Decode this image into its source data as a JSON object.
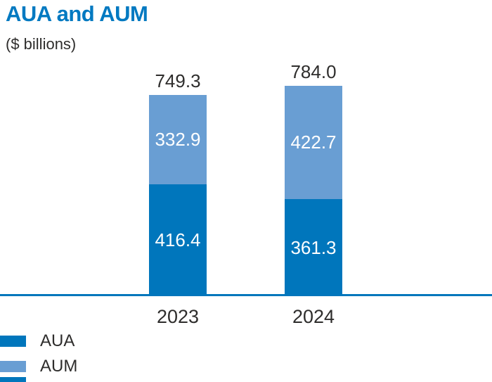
{
  "header": {
    "title": "AUA and AUM",
    "subtitle": "($ billions)"
  },
  "colors": {
    "aua": "#0076bc",
    "aum": "#699ed3",
    "axis": "#0076bc",
    "title_text": "#0079c1",
    "body_text": "#2e2d2c",
    "segment_label_text": "#ffffff"
  },
  "chart_data": {
    "type": "bar",
    "stacked": true,
    "title": "AUA and AUM",
    "units": "$ billions",
    "categories": [
      "2023",
      "2024"
    ],
    "series": [
      {
        "name": "AUM",
        "color": "#699ed3",
        "values": [
          332.9,
          422.7
        ]
      },
      {
        "name": "AUA",
        "color": "#0076bc",
        "values": [
          416.4,
          361.3
        ]
      }
    ],
    "totals": [
      749.3,
      784.0
    ],
    "grid": false,
    "legend_position": "bottom-left",
    "value_labels": "white inside segments, totals above bars"
  },
  "labels": {
    "totals": [
      "749.3",
      "784.0"
    ],
    "aum": [
      "332.9",
      "422.7"
    ],
    "aua": [
      "416.4",
      "361.3"
    ],
    "years": [
      "2023",
      "2024"
    ]
  },
  "legend": {
    "items": [
      {
        "label": "AUA"
      },
      {
        "label": "AUM"
      }
    ]
  }
}
